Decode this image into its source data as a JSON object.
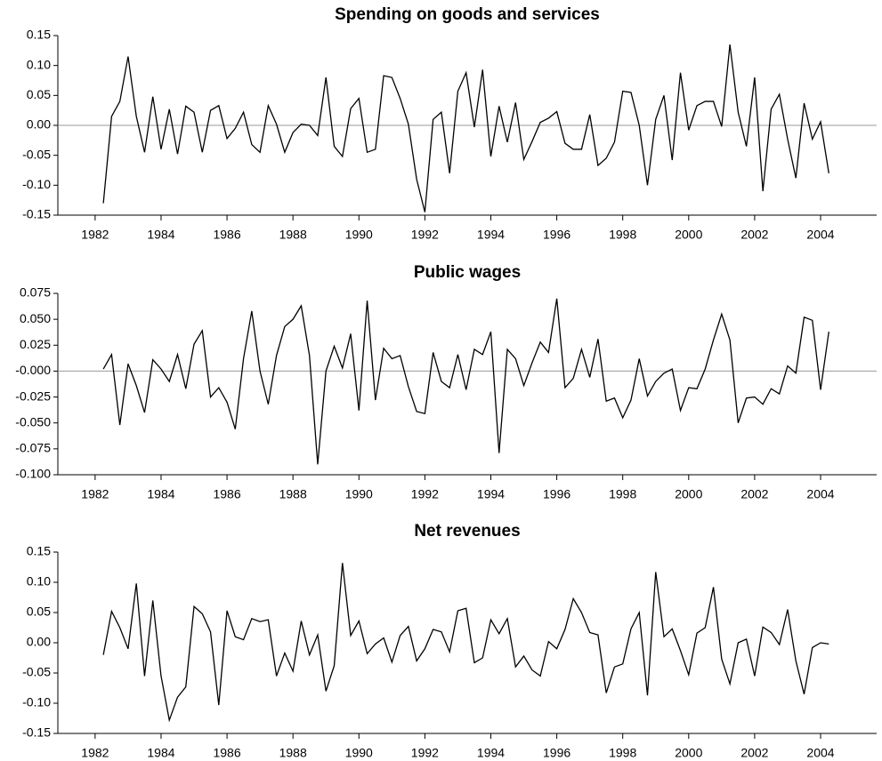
{
  "chart_data": [
    {
      "type": "line",
      "title": "Spending on goods and services",
      "color": "#000000",
      "zero_line": true,
      "xlim": [
        1980.87,
        2005.7
      ],
      "xticks": [
        1982,
        1984,
        1986,
        1988,
        1990,
        1992,
        1994,
        1996,
        1998,
        2000,
        2002,
        2004
      ],
      "ylim": [
        -0.15,
        0.15
      ],
      "yticks": [
        {
          "value": 0.15,
          "label": "0.15"
        },
        {
          "value": 0.1,
          "label": "0.10"
        },
        {
          "value": 0.05,
          "label": "0.05"
        },
        {
          "value": 0,
          "label": "0.00"
        },
        {
          "value": -0.05,
          "label": "-0.05"
        },
        {
          "value": -0.1,
          "label": "-0.10"
        },
        {
          "value": -0.15,
          "label": "-0.15"
        }
      ],
      "x": [
        1982.25,
        1982.5,
        1982.75,
        1983,
        1983.25,
        1983.5,
        1983.75,
        1984,
        1984.25,
        1984.5,
        1984.75,
        1985,
        1985.25,
        1985.5,
        1985.75,
        1986,
        1986.25,
        1986.5,
        1986.75,
        1987,
        1987.25,
        1987.5,
        1987.75,
        1988,
        1988.25,
        1988.5,
        1988.75,
        1989,
        1989.25,
        1989.5,
        1989.75,
        1990,
        1990.25,
        1990.5,
        1990.75,
        1991,
        1991.25,
        1991.5,
        1991.75,
        1992,
        1992.25,
        1992.5,
        1992.75,
        1993,
        1993.25,
        1993.5,
        1993.75,
        1994,
        1994.25,
        1994.5,
        1994.75,
        1995,
        1995.25,
        1995.5,
        1995.75,
        1996,
        1996.25,
        1996.5,
        1996.75,
        1997,
        1997.25,
        1997.5,
        1997.75,
        1998,
        1998.25,
        1998.5,
        1998.75,
        1999,
        1999.25,
        1999.5,
        1999.75,
        2000,
        2000.25,
        2000.5,
        2000.75,
        2001,
        2001.25,
        2001.5,
        2001.75,
        2002,
        2002.25,
        2002.5,
        2002.75,
        2003,
        2003.25,
        2003.5,
        2003.75,
        2004,
        2004.25
      ],
      "values": [
        -0.13,
        0.015,
        0.04,
        0.115,
        0.015,
        -0.045,
        0.048,
        -0.04,
        0.027,
        -0.048,
        0.032,
        0.022,
        -0.045,
        0.025,
        0.033,
        -0.022,
        -0.005,
        0.022,
        -0.032,
        -0.045,
        0.033,
        0.002,
        -0.045,
        -0.012,
        0.002,
        0.0,
        -0.017,
        0.08,
        -0.035,
        -0.052,
        0.028,
        0.045,
        -0.045,
        -0.04,
        0.083,
        0.08,
        0.045,
        0.002,
        -0.09,
        -0.145,
        0.01,
        0.022,
        -0.08,
        0.057,
        0.088,
        -0.003,
        0.093,
        -0.052,
        0.032,
        -0.028,
        0.038,
        -0.057,
        -0.027,
        0.005,
        0.012,
        0.023,
        -0.03,
        -0.04,
        -0.04,
        0.018,
        -0.067,
        -0.055,
        -0.028,
        0.057,
        0.055,
        0.0,
        -0.1,
        0.01,
        0.05,
        -0.058,
        0.088,
        -0.008,
        0.033,
        0.04,
        0.04,
        -0.002,
        0.135,
        0.022,
        -0.035,
        0.08,
        -0.11,
        0.027,
        0.052,
        -0.023,
        -0.088,
        0.037,
        -0.023,
        0.006,
        -0.08
      ]
    },
    {
      "type": "line",
      "title": "Public wages",
      "color": "#000000",
      "zero_line": true,
      "xlim": [
        1980.87,
        2005.7
      ],
      "xticks": [
        1982,
        1984,
        1986,
        1988,
        1990,
        1992,
        1994,
        1996,
        1998,
        2000,
        2002,
        2004
      ],
      "ylim": [
        -0.1,
        0.075
      ],
      "yticks": [
        {
          "value": 0.075,
          "label": "0.075"
        },
        {
          "value": 0.05,
          "label": "0.050"
        },
        {
          "value": 0.025,
          "label": "0.025"
        },
        {
          "value": 0,
          "label": "-0.000"
        },
        {
          "value": -0.025,
          "label": "-0.025"
        },
        {
          "value": -0.05,
          "label": "-0.050"
        },
        {
          "value": -0.075,
          "label": "-0.075"
        },
        {
          "value": -0.1,
          "label": "-0.100"
        }
      ],
      "x": [
        1982.25,
        1982.5,
        1982.75,
        1983,
        1983.25,
        1983.5,
        1983.75,
        1984,
        1984.25,
        1984.5,
        1984.75,
        1985,
        1985.25,
        1985.5,
        1985.75,
        1986,
        1986.25,
        1986.5,
        1986.75,
        1987,
        1987.25,
        1987.5,
        1987.75,
        1988,
        1988.25,
        1988.5,
        1988.75,
        1989,
        1989.25,
        1989.5,
        1989.75,
        1990,
        1990.25,
        1990.5,
        1990.75,
        1991,
        1991.25,
        1991.5,
        1991.75,
        1992,
        1992.25,
        1992.5,
        1992.75,
        1993,
        1993.25,
        1993.5,
        1993.75,
        1994,
        1994.25,
        1994.5,
        1994.75,
        1995,
        1995.25,
        1995.5,
        1995.75,
        1996,
        1996.25,
        1996.5,
        1996.75,
        1997,
        1997.25,
        1997.5,
        1997.75,
        1998,
        1998.25,
        1998.5,
        1998.75,
        1999,
        1999.25,
        1999.5,
        1999.75,
        2000,
        2000.25,
        2000.5,
        2000.75,
        2001,
        2001.25,
        2001.5,
        2001.75,
        2002,
        2002.25,
        2002.5,
        2002.75,
        2003,
        2003.25,
        2003.5,
        2003.75,
        2004,
        2004.25
      ],
      "values": [
        0.002,
        0.016,
        -0.052,
        0.007,
        -0.014,
        -0.04,
        0.011,
        0.002,
        -0.01,
        0.016,
        -0.017,
        0.026,
        0.039,
        -0.025,
        -0.016,
        -0.03,
        -0.056,
        0.012,
        0.058,
        0.0,
        -0.032,
        0.015,
        0.043,
        0.05,
        0.063,
        0.015,
        -0.09,
        0.0,
        0.024,
        0.003,
        0.036,
        -0.038,
        0.068,
        -0.028,
        0.022,
        0.012,
        0.015,
        -0.015,
        -0.039,
        -0.041,
        0.018,
        -0.01,
        -0.016,
        0.016,
        -0.018,
        0.021,
        0.016,
        0.038,
        -0.079,
        0.021,
        0.012,
        -0.014,
        0.008,
        0.028,
        0.018,
        0.07,
        -0.016,
        -0.007,
        0.021,
        -0.006,
        0.031,
        -0.029,
        -0.026,
        -0.045,
        -0.028,
        0.012,
        -0.024,
        -0.01,
        -0.002,
        0.002,
        -0.038,
        -0.016,
        -0.017,
        0.002,
        0.03,
        0.055,
        0.03,
        -0.05,
        -0.026,
        -0.025,
        -0.032,
        -0.017,
        -0.022,
        0.005,
        -0.002,
        0.052,
        0.049,
        -0.018,
        0.038
      ]
    },
    {
      "type": "line",
      "title": "Net revenues",
      "color": "#000000",
      "zero_line": false,
      "xlim": [
        1980.87,
        2005.7
      ],
      "xticks": [
        1982,
        1984,
        1986,
        1988,
        1990,
        1992,
        1994,
        1996,
        1998,
        2000,
        2002,
        2004
      ],
      "ylim": [
        -0.15,
        0.15
      ],
      "yticks": [
        {
          "value": 0.15,
          "label": "0.15"
        },
        {
          "value": 0.1,
          "label": "0.10"
        },
        {
          "value": 0.05,
          "label": "0.05"
        },
        {
          "value": 0,
          "label": "0.00"
        },
        {
          "value": -0.05,
          "label": "-0.05"
        },
        {
          "value": -0.1,
          "label": "-0.10"
        },
        {
          "value": -0.15,
          "label": "-0.15"
        }
      ],
      "x": [
        1982.25,
        1982.5,
        1982.75,
        1983,
        1983.25,
        1983.5,
        1983.75,
        1984,
        1984.25,
        1984.5,
        1984.75,
        1985,
        1985.25,
        1985.5,
        1985.75,
        1986,
        1986.25,
        1986.5,
        1986.75,
        1987,
        1987.25,
        1987.5,
        1987.75,
        1988,
        1988.25,
        1988.5,
        1988.75,
        1989,
        1989.25,
        1989.5,
        1989.75,
        1990,
        1990.25,
        1990.5,
        1990.75,
        1991,
        1991.25,
        1991.5,
        1991.75,
        1992,
        1992.25,
        1992.5,
        1992.75,
        1993,
        1993.25,
        1993.5,
        1993.75,
        1994,
        1994.25,
        1994.5,
        1994.75,
        1995,
        1995.25,
        1995.5,
        1995.75,
        1996,
        1996.25,
        1996.5,
        1996.75,
        1997,
        1997.25,
        1997.5,
        1997.75,
        1998,
        1998.25,
        1998.5,
        1998.75,
        1999,
        1999.25,
        1999.5,
        1999.75,
        2000,
        2000.25,
        2000.5,
        2000.75,
        2001,
        2001.25,
        2001.5,
        2001.75,
        2002,
        2002.25,
        2002.5,
        2002.75,
        2003,
        2003.25,
        2003.5,
        2003.75,
        2004,
        2004.25
      ],
      "values": [
        -0.02,
        0.052,
        0.025,
        -0.01,
        0.098,
        -0.055,
        0.07,
        -0.055,
        -0.128,
        -0.09,
        -0.073,
        0.06,
        0.048,
        0.018,
        -0.103,
        0.053,
        0.01,
        0.005,
        0.04,
        0.035,
        0.038,
        -0.055,
        -0.017,
        -0.047,
        0.036,
        -0.02,
        0.013,
        -0.08,
        -0.038,
        0.132,
        0.012,
        0.036,
        -0.018,
        -0.002,
        0.008,
        -0.032,
        0.012,
        0.027,
        -0.03,
        -0.01,
        0.022,
        0.018,
        -0.015,
        0.053,
        0.057,
        -0.033,
        -0.025,
        0.038,
        0.015,
        0.04,
        -0.04,
        -0.022,
        -0.045,
        -0.055,
        0.002,
        -0.01,
        0.022,
        0.073,
        0.05,
        0.017,
        0.013,
        -0.083,
        -0.04,
        -0.035,
        0.023,
        0.05,
        -0.087,
        0.117,
        0.01,
        0.023,
        -0.013,
        -0.053,
        0.016,
        0.025,
        0.092,
        -0.027,
        -0.068,
        0.0,
        0.006,
        -0.055,
        0.026,
        0.017,
        -0.003,
        0.055,
        -0.03,
        -0.085,
        -0.008,
        0.0,
        -0.002
      ]
    }
  ]
}
